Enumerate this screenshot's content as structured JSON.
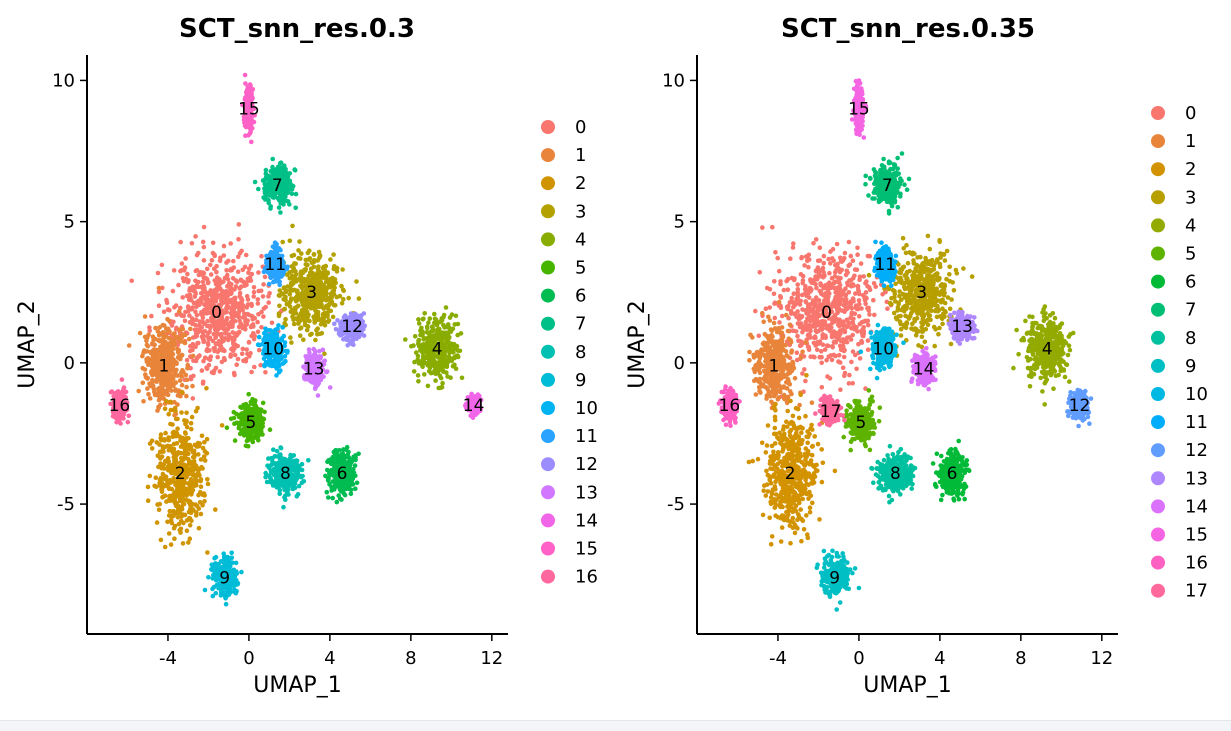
{
  "chart_data": [
    {
      "type": "scatter",
      "title": "SCT_snn_res.0.3",
      "xlabel": "UMAP_1",
      "ylabel": "UMAP_2",
      "xlim": [
        -8.0,
        12.8
      ],
      "ylim": [
        -9.6,
        10.9
      ],
      "xticks": [
        -4,
        0,
        4,
        8,
        12
      ],
      "yticks": [
        -5,
        0,
        5,
        10
      ],
      "grid": false,
      "legend_position": "right",
      "legend": [
        "0",
        "1",
        "2",
        "3",
        "4",
        "5",
        "6",
        "7",
        "8",
        "9",
        "10",
        "11",
        "12",
        "13",
        "14",
        "15",
        "16"
      ],
      "colors": [
        "#F8766D",
        "#E8853A",
        "#D09400",
        "#B2A100",
        "#89AC00",
        "#45B500",
        "#00BC51",
        "#00C087",
        "#00C0B2",
        "#00BCD6",
        "#00B3F2",
        "#29A3FF",
        "#9C8DFF",
        "#D277FF",
        "#F166E8",
        "#FF61C7",
        "#FF689E"
      ],
      "clusters": [
        {
          "label": "0",
          "x": -1.6,
          "y": 1.8,
          "sx": 2.2,
          "sy": 1.9
        },
        {
          "label": "1",
          "x": -4.2,
          "y": -0.1,
          "sx": 0.9,
          "sy": 1.2
        },
        {
          "label": "2",
          "x": -3.4,
          "y": -3.9,
          "sx": 1.1,
          "sy": 1.8
        },
        {
          "label": "3",
          "x": 3.1,
          "y": 2.5,
          "sx": 1.3,
          "sy": 1.3
        },
        {
          "label": "4",
          "x": 9.3,
          "y": 0.5,
          "sx": 0.9,
          "sy": 1.0
        },
        {
          "label": "5",
          "x": 0.1,
          "y": -2.1,
          "sx": 0.6,
          "sy": 0.6
        },
        {
          "label": "6",
          "x": 4.6,
          "y": -3.9,
          "sx": 0.6,
          "sy": 0.7
        },
        {
          "label": "7",
          "x": 1.4,
          "y": 6.3,
          "sx": 0.6,
          "sy": 0.6
        },
        {
          "label": "8",
          "x": 1.8,
          "y": -3.9,
          "sx": 0.8,
          "sy": 0.6
        },
        {
          "label": "9",
          "x": -1.2,
          "y": -7.6,
          "sx": 0.6,
          "sy": 0.6
        },
        {
          "label": "10",
          "x": 1.2,
          "y": 0.5,
          "sx": 0.5,
          "sy": 0.6
        },
        {
          "label": "11",
          "x": 1.3,
          "y": 3.5,
          "sx": 0.4,
          "sy": 0.5
        },
        {
          "label": "12",
          "x": 5.1,
          "y": 1.3,
          "sx": 0.5,
          "sy": 0.4
        },
        {
          "label": "13",
          "x": 3.2,
          "y": -0.2,
          "sx": 0.4,
          "sy": 0.5
        },
        {
          "label": "14",
          "x": 11.1,
          "y": -1.5,
          "sx": 0.3,
          "sy": 0.3
        },
        {
          "label": "15",
          "x": 0.0,
          "y": 9.0,
          "sx": 0.2,
          "sy": 0.7
        },
        {
          "label": "16",
          "x": -6.4,
          "y": -1.5,
          "sx": 0.3,
          "sy": 0.5
        }
      ]
    },
    {
      "type": "scatter",
      "title": "SCT_snn_res.0.35",
      "xlabel": "UMAP_1",
      "ylabel": "UMAP_2",
      "xlim": [
        -8.0,
        12.8
      ],
      "ylim": [
        -9.6,
        10.9
      ],
      "xticks": [
        -4,
        0,
        4,
        8,
        12
      ],
      "yticks": [
        -5,
        0,
        5,
        10
      ],
      "grid": false,
      "legend_position": "right",
      "legend": [
        "0",
        "1",
        "2",
        "3",
        "4",
        "5",
        "6",
        "7",
        "8",
        "9",
        "10",
        "11",
        "12",
        "13",
        "14",
        "15",
        "16",
        "17"
      ],
      "colors": [
        "#F8766D",
        "#E8853A",
        "#D39200",
        "#B79F00",
        "#93AA00",
        "#5EB300",
        "#00BA38",
        "#00BF74",
        "#00C19F",
        "#00BFC4",
        "#00B9E3",
        "#00ADFA",
        "#619CFF",
        "#AE87FF",
        "#DB72FB",
        "#F564E3",
        "#FF61C3",
        "#FF699C"
      ],
      "clusters": [
        {
          "label": "0",
          "x": -1.6,
          "y": 1.8,
          "sx": 2.2,
          "sy": 1.9
        },
        {
          "label": "1",
          "x": -4.2,
          "y": -0.1,
          "sx": 0.9,
          "sy": 1.2
        },
        {
          "label": "2",
          "x": -3.4,
          "y": -3.9,
          "sx": 1.1,
          "sy": 1.8
        },
        {
          "label": "3",
          "x": 3.1,
          "y": 2.5,
          "sx": 1.3,
          "sy": 1.3
        },
        {
          "label": "4",
          "x": 9.3,
          "y": 0.5,
          "sx": 0.9,
          "sy": 1.0
        },
        {
          "label": "5",
          "x": 0.1,
          "y": -2.1,
          "sx": 0.6,
          "sy": 0.6
        },
        {
          "label": "6",
          "x": 4.6,
          "y": -3.9,
          "sx": 0.6,
          "sy": 0.7
        },
        {
          "label": "7",
          "x": 1.4,
          "y": 6.3,
          "sx": 0.6,
          "sy": 0.6
        },
        {
          "label": "8",
          "x": 1.8,
          "y": -3.9,
          "sx": 0.8,
          "sy": 0.6
        },
        {
          "label": "9",
          "x": -1.2,
          "y": -7.6,
          "sx": 0.6,
          "sy": 0.6
        },
        {
          "label": "10",
          "x": 1.2,
          "y": 0.5,
          "sx": 0.5,
          "sy": 0.6
        },
        {
          "label": "11",
          "x": 1.3,
          "y": 3.5,
          "sx": 0.4,
          "sy": 0.5
        },
        {
          "label": "12",
          "x": 10.9,
          "y": -1.5,
          "sx": 0.4,
          "sy": 0.4
        },
        {
          "label": "13",
          "x": 5.1,
          "y": 1.3,
          "sx": 0.5,
          "sy": 0.4
        },
        {
          "label": "14",
          "x": 3.2,
          "y": -0.2,
          "sx": 0.4,
          "sy": 0.5
        },
        {
          "label": "15",
          "x": 0.0,
          "y": 9.0,
          "sx": 0.2,
          "sy": 0.7
        },
        {
          "label": "16",
          "x": -6.4,
          "y": -1.5,
          "sx": 0.3,
          "sy": 0.5
        },
        {
          "label": "17",
          "x": -1.4,
          "y": -1.7,
          "sx": 0.4,
          "sy": 0.4
        }
      ]
    }
  ]
}
